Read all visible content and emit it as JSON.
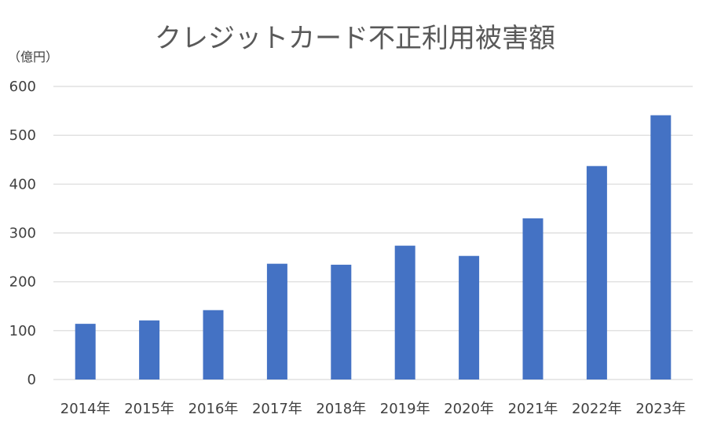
{
  "chart_data": {
    "type": "bar",
    "title": "クレジットカード不正利用被害額",
    "ylabel": "（億円）",
    "xlabel": "",
    "categories": [
      "2014年",
      "2015年",
      "2016年",
      "2017年",
      "2018年",
      "2019年",
      "2020年",
      "2021年",
      "2022年",
      "2023年"
    ],
    "series": [
      {
        "values": [
          114,
          121,
          142,
          237,
          235,
          274,
          253,
          330,
          437,
          541
        ]
      }
    ],
    "ylim": [
      0,
      600
    ],
    "yticks": [
      0,
      100,
      200,
      300,
      400,
      500,
      600
    ],
    "grid": true,
    "legend": "none",
    "colors": {
      "bar": "#4472C4",
      "grid": "#D9D9D9",
      "text": "#404040",
      "title": "#595959"
    }
  }
}
